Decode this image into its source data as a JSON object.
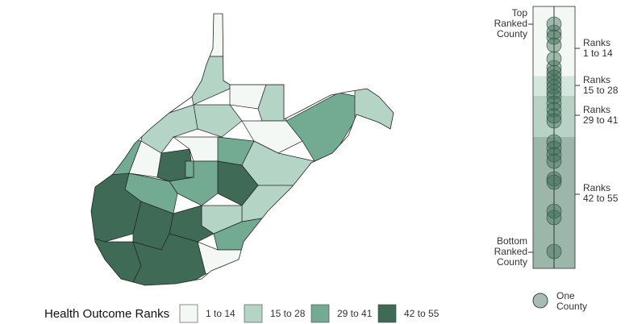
{
  "legend": {
    "title": "Health Outcome Ranks",
    "items": [
      {
        "label": "1 to 14",
        "color": "#f3f8f5"
      },
      {
        "label": "15 to 28",
        "color": "#b4d5c6"
      },
      {
        "label": "29 to 41",
        "color": "#72ab92"
      },
      {
        "label": "42 to 55",
        "color": "#3e6a56"
      }
    ]
  },
  "strip": {
    "top": [
      "Top",
      "Ranked",
      "County"
    ],
    "bottom": [
      "Bottom",
      "Ranked",
      "County"
    ],
    "bands": [
      [
        "Ranks",
        "1 to 14"
      ],
      [
        "Ranks",
        "15 to 28"
      ],
      [
        "Ranks",
        "29 to 41"
      ],
      [
        "Ranks",
        "42 to 55"
      ]
    ],
    "point_legend": [
      "One",
      "County"
    ]
  }
}
